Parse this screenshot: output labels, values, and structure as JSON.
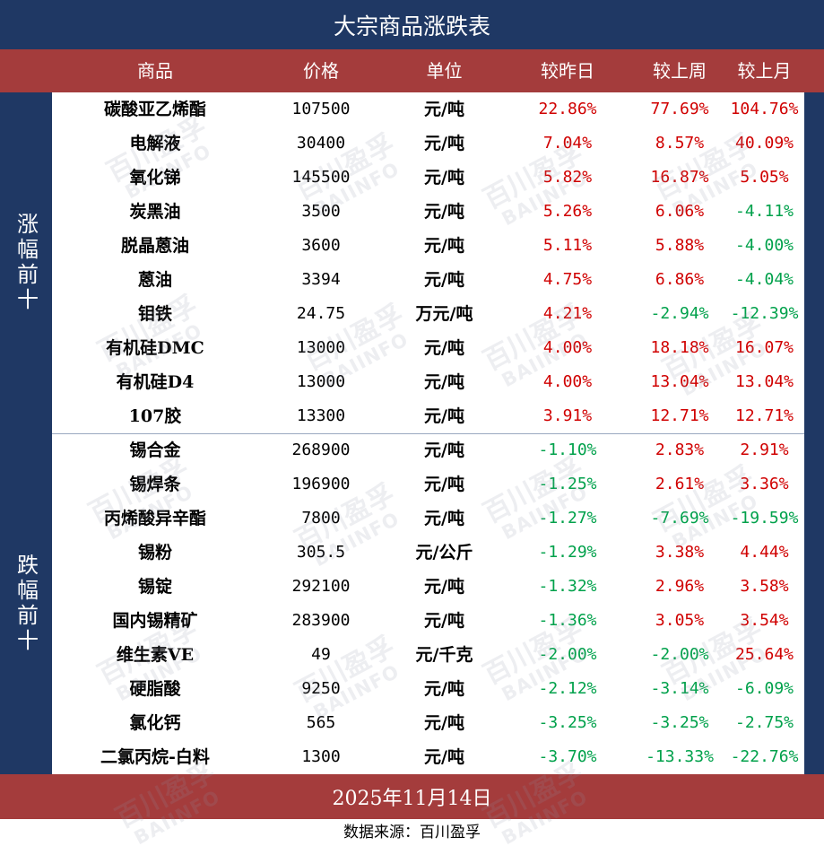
{
  "title": "大宗商品涨跌表",
  "columns": [
    "商品",
    "价格",
    "单位",
    "较昨日",
    "较上周",
    "较上月"
  ],
  "groups": [
    {
      "label": "涨幅前十",
      "rows": [
        {
          "name": "碳酸亚乙烯酯",
          "price": "107500",
          "unit": "元/吨",
          "day": "22.86%",
          "week": "77.69%",
          "month": "104.76%"
        },
        {
          "name": "电解液",
          "price": "30400",
          "unit": "元/吨",
          "day": "7.04%",
          "week": "8.57%",
          "month": "40.09%"
        },
        {
          "name": "氧化锑",
          "price": "145500",
          "unit": "元/吨",
          "day": "5.82%",
          "week": "16.87%",
          "month": "5.05%"
        },
        {
          "name": "炭黑油",
          "price": "3500",
          "unit": "元/吨",
          "day": "5.26%",
          "week": "6.06%",
          "month": "-4.11%"
        },
        {
          "name": "脱晶蒽油",
          "price": "3600",
          "unit": "元/吨",
          "day": "5.11%",
          "week": "5.88%",
          "month": "-4.00%"
        },
        {
          "name": "蒽油",
          "price": "3394",
          "unit": "元/吨",
          "day": "4.75%",
          "week": "6.86%",
          "month": "-4.04%"
        },
        {
          "name": "钼铁",
          "price": "24.75",
          "unit": "万元/吨",
          "day": "4.21%",
          "week": "-2.94%",
          "month": "-12.39%"
        },
        {
          "name": "有机硅DMC",
          "price": "13000",
          "unit": "元/吨",
          "day": "4.00%",
          "week": "18.18%",
          "month": "16.07%"
        },
        {
          "name": "有机硅D4",
          "price": "13000",
          "unit": "元/吨",
          "day": "4.00%",
          "week": "13.04%",
          "month": "13.04%"
        },
        {
          "name": "107胶",
          "price": "13300",
          "unit": "元/吨",
          "day": "3.91%",
          "week": "12.71%",
          "month": "12.71%"
        }
      ]
    },
    {
      "label": "跌幅前十",
      "rows": [
        {
          "name": "锡合金",
          "price": "268900",
          "unit": "元/吨",
          "day": "-1.10%",
          "week": "2.83%",
          "month": "2.91%"
        },
        {
          "name": "锡焊条",
          "price": "196900",
          "unit": "元/吨",
          "day": "-1.25%",
          "week": "2.61%",
          "month": "3.36%"
        },
        {
          "name": "丙烯酸异辛酯",
          "price": "7800",
          "unit": "元/吨",
          "day": "-1.27%",
          "week": "-7.69%",
          "month": "-19.59%"
        },
        {
          "name": "锡粉",
          "price": "305.5",
          "unit": "元/公斤",
          "day": "-1.29%",
          "week": "3.38%",
          "month": "4.44%"
        },
        {
          "name": "锡锭",
          "price": "292100",
          "unit": "元/吨",
          "day": "-1.32%",
          "week": "2.96%",
          "month": "3.58%"
        },
        {
          "name": "国内锡精矿",
          "price": "283900",
          "unit": "元/吨",
          "day": "-1.36%",
          "week": "3.05%",
          "month": "3.54%"
        },
        {
          "name": "维生素VE",
          "price": "49",
          "unit": "元/千克",
          "day": "-2.00%",
          "week": "-2.00%",
          "month": "25.64%"
        },
        {
          "name": "硬脂酸",
          "price": "9250",
          "unit": "元/吨",
          "day": "-2.12%",
          "week": "-3.14%",
          "month": "-6.09%"
        },
        {
          "name": "氯化钙",
          "price": "565",
          "unit": "元/吨",
          "day": "-3.25%",
          "week": "-3.25%",
          "month": "-2.75%"
        },
        {
          "name": "二氯丙烷-白料",
          "price": "1300",
          "unit": "元/吨",
          "day": "-3.70%",
          "week": "-13.33%",
          "month": "-22.76%"
        }
      ]
    }
  ],
  "date": "2025年11月14日",
  "source": "数据来源：百川盈孚",
  "watermark": {
    "cn": "百川盈孚",
    "en": "BAIINFO"
  },
  "colors": {
    "navy": "#1f3864",
    "header_red": "#a43c3c",
    "rise": "#d00000",
    "fall": "#00a14b"
  }
}
